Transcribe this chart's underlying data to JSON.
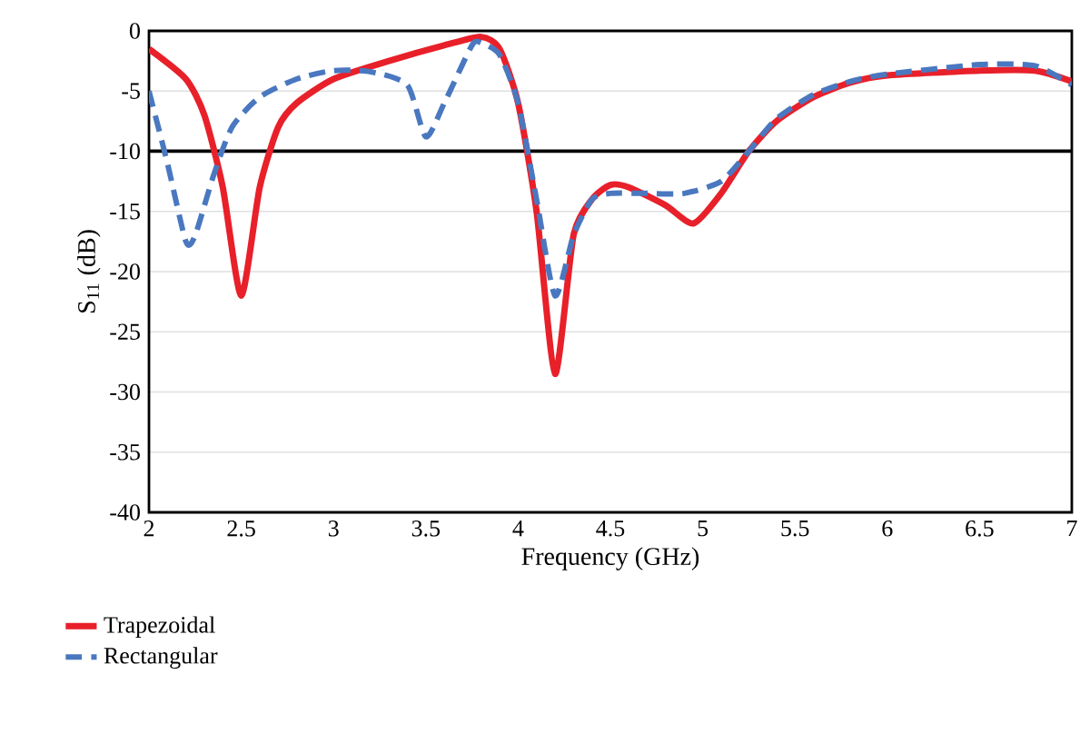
{
  "chart_data": {
    "type": "line",
    "xlabel": "Frequency (GHz)",
    "ylabel": "S$_{11}$ (dB)",
    "xlim": [
      2,
      7
    ],
    "ylim": [
      -40,
      0
    ],
    "xticks": [
      2,
      2.5,
      3,
      3.5,
      4,
      4.5,
      5,
      5.5,
      6,
      6.5,
      7
    ],
    "yticks": [
      -40,
      -35,
      -30,
      -25,
      -20,
      -15,
      -10,
      -5,
      0
    ],
    "grid": "y",
    "legend": "bottom left",
    "ref_lines": [
      {
        "axis": "y",
        "value": -10,
        "color": "#000000"
      }
    ],
    "series": [
      {
        "name": "Trapezoidal",
        "color": "#e8202a",
        "line_style": "solid",
        "x": [
          2.0,
          2.2,
          2.3,
          2.4,
          2.5,
          2.6,
          2.7,
          2.8,
          3.0,
          3.3,
          3.6,
          3.8,
          3.9,
          4.0,
          4.1,
          4.2,
          4.3,
          4.4,
          4.5,
          4.6,
          4.8,
          4.95,
          5.1,
          5.25,
          5.4,
          5.6,
          5.8,
          6.0,
          6.5,
          6.8,
          7.0
        ],
        "values": [
          -1.5,
          -4,
          -7,
          -13,
          -22,
          -13,
          -8,
          -6,
          -4,
          -2.5,
          -1.2,
          -0.5,
          -1.5,
          -6,
          -15,
          -28.5,
          -17,
          -14,
          -12.8,
          -13,
          -14.5,
          -16,
          -13.5,
          -10,
          -7.5,
          -5.5,
          -4.3,
          -3.7,
          -3.3,
          -3.3,
          -4.2
        ]
      },
      {
        "name": "Rectangular",
        "color": "#4a78c0",
        "line_style": "dashed",
        "x": [
          2.0,
          2.1,
          2.2,
          2.25,
          2.35,
          2.45,
          2.6,
          2.8,
          3.0,
          3.2,
          3.4,
          3.5,
          3.6,
          3.75,
          3.8,
          3.9,
          4.0,
          4.1,
          4.2,
          4.3,
          4.4,
          4.5,
          4.7,
          4.9,
          5.1,
          5.25,
          5.4,
          5.6,
          5.8,
          6.0,
          6.5,
          6.8,
          7.0
        ],
        "values": [
          -5,
          -11,
          -17.5,
          -17,
          -12,
          -8,
          -5.5,
          -4,
          -3.3,
          -3.4,
          -4.5,
          -8.8,
          -6,
          -1.2,
          -1,
          -2,
          -6,
          -14,
          -22,
          -17,
          -14,
          -13.5,
          -13.5,
          -13.5,
          -12.5,
          -10,
          -7.3,
          -5.3,
          -4.2,
          -3.6,
          -2.8,
          -2.9,
          -4.5
        ]
      }
    ]
  }
}
